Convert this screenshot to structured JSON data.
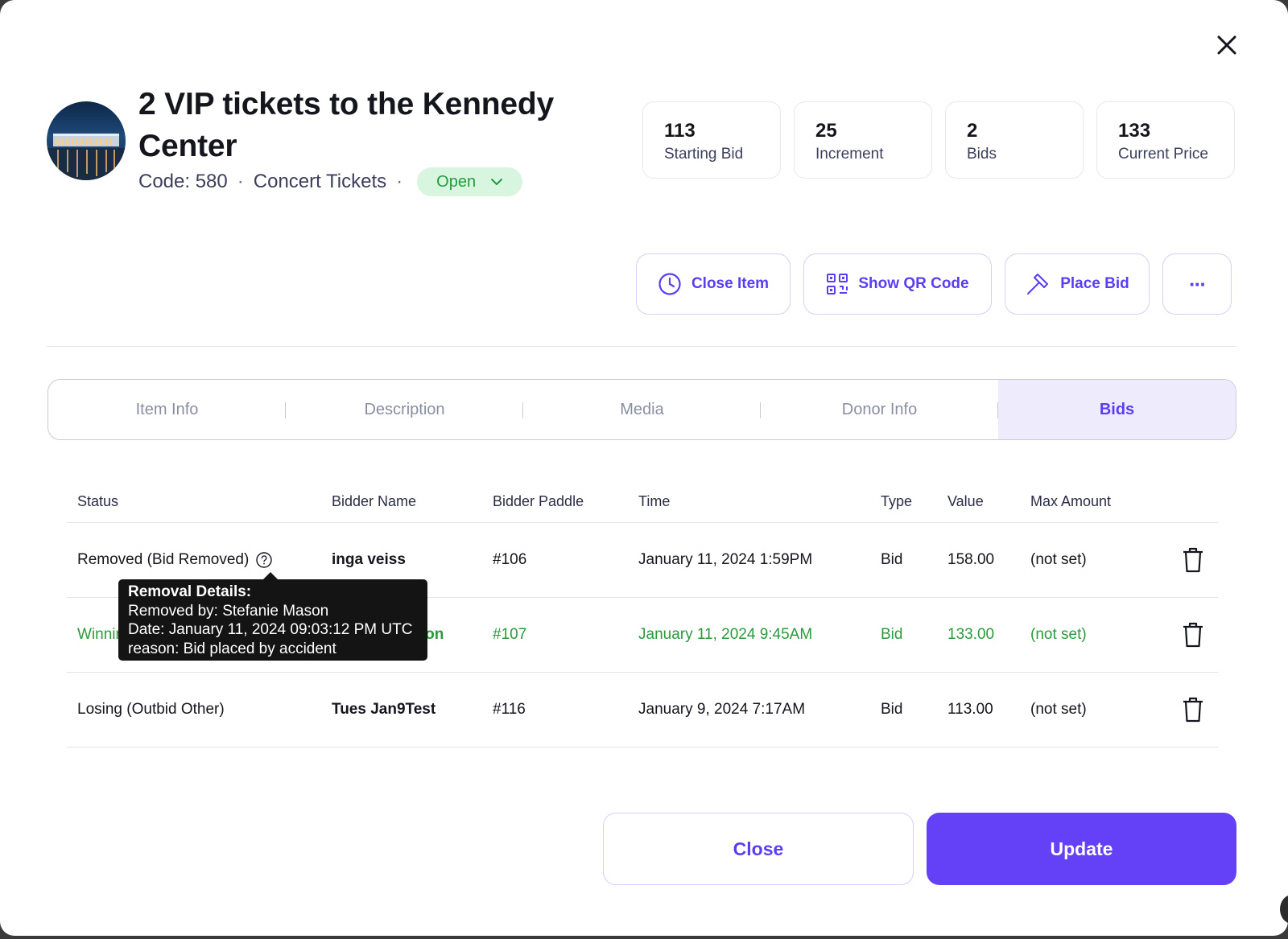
{
  "item": {
    "title": "2 VIP tickets to the Kennedy Center",
    "code": "Code: 580",
    "category": "Concert Tickets",
    "status": "Open"
  },
  "stats": [
    {
      "value": "113",
      "label": "Starting Bid"
    },
    {
      "value": "25",
      "label": "Increment"
    },
    {
      "value": "2",
      "label": "Bids"
    },
    {
      "value": "133",
      "label": "Current Price"
    }
  ],
  "actions": {
    "close_item": "Close Item",
    "show_qr": "Show QR Code",
    "place_bid": "Place Bid",
    "more": "···"
  },
  "tabs": [
    {
      "label": "Item Info",
      "active": false
    },
    {
      "label": "Description",
      "active": false
    },
    {
      "label": "Media",
      "active": false
    },
    {
      "label": "Donor Info",
      "active": false
    },
    {
      "label": "Bids",
      "active": true
    }
  ],
  "table": {
    "headers": [
      "Status",
      "Bidder Name",
      "Bidder Paddle",
      "Time",
      "Type",
      "Value",
      "Max Amount"
    ],
    "rows": [
      {
        "status": "Removed (Bid Removed)",
        "bidder": "inga veiss",
        "paddle": "#106",
        "time": "January 11, 2024 1:59PM",
        "type": "Bid",
        "value": "158.00",
        "max": "(not set)"
      },
      {
        "status": "Winning",
        "bidder": "Stefanie Mason",
        "paddle": "#107",
        "time": "January 11, 2024 9:45AM",
        "type": "Bid",
        "value": "133.00",
        "max": "(not set)"
      },
      {
        "status": "Losing (Outbid Other)",
        "bidder": "Tues Jan9Test",
        "paddle": "#116",
        "time": "January 9, 2024 7:17AM",
        "type": "Bid",
        "value": "113.00",
        "max": "(not set)"
      }
    ]
  },
  "tooltip": {
    "heading": "Removal Details:",
    "removed_by": "Removed by: Stefanie Mason",
    "date": "Date: January 11, 2024 09:03:12 PM UTC",
    "reason": "reason: Bid placed by accident"
  },
  "footer": {
    "close": "Close",
    "update": "Update"
  },
  "colors": {
    "accent": "#6441f7",
    "open_bg": "#d8f5df",
    "open_text": "#1f9d3a",
    "winning_text": "#2a9a3b"
  }
}
